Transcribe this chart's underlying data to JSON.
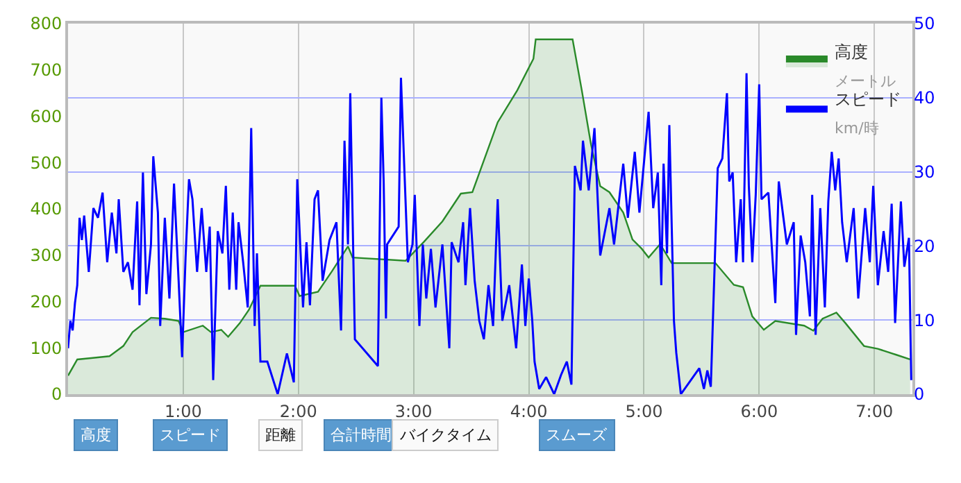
{
  "chart_data": {
    "type": "area",
    "xlim": [
      0,
      7.33
    ],
    "ylim": [
      0,
      800
    ],
    "y2lim": [
      0,
      50
    ],
    "xticks": [
      {
        "value": 1,
        "label": "1:00"
      },
      {
        "value": 2,
        "label": "2:00"
      },
      {
        "value": 3,
        "label": "3:00"
      },
      {
        "value": 4,
        "label": "4:00"
      },
      {
        "value": 5,
        "label": "5:00"
      },
      {
        "value": 6,
        "label": "6:00"
      },
      {
        "value": 7,
        "label": "7:00"
      }
    ],
    "yticks": [
      0,
      100,
      200,
      300,
      400,
      500,
      600,
      700,
      800
    ],
    "y2ticks": [
      0,
      10,
      20,
      30,
      40,
      50
    ],
    "grid": true,
    "legend": "top right",
    "series": [
      {
        "name": "高度",
        "type": "area",
        "color": "#2a8a2a",
        "x": [
          0,
          0.08,
          0.2,
          0.36,
          0.48,
          0.56,
          0.72,
          0.84,
          0.96,
          1.0,
          1.17,
          1.24,
          1.33,
          1.39,
          1.49,
          1.57,
          1.67,
          1.97,
          2.01,
          2.17,
          2.29,
          2.43,
          2.47,
          2.93,
          3.09,
          3.25,
          3.41,
          3.51,
          3.73,
          3.9,
          4.04,
          4.06,
          4.38,
          4.46,
          4.54,
          4.62,
          4.7,
          4.82,
          4.9,
          4.98,
          5.04,
          5.14,
          5.24,
          5.62,
          5.78,
          5.86,
          5.94,
          6.04,
          6.14,
          6.39,
          6.47,
          6.55,
          6.67,
          6.75,
          6.91,
          7.03,
          7.19,
          7.31
        ],
        "values": [
          40,
          75,
          78,
          82,
          104,
          134,
          165,
          163,
          158,
          134,
          148,
          134,
          139,
          124,
          153,
          182,
          234,
          234,
          212,
          221,
          265,
          319,
          295,
          288,
          329,
          373,
          433,
          436,
          587,
          656,
          724,
          766,
          766,
          656,
          539,
          449,
          436,
          392,
          334,
          314,
          295,
          324,
          283,
          283,
          236,
          231,
          168,
          139,
          158,
          148,
          137,
          163,
          176,
          153,
          104,
          98,
          85,
          75
        ]
      },
      {
        "name": "スピード",
        "type": "line",
        "axis": "y2",
        "color": "#0000ff",
        "x": [
          0,
          0.02,
          0.04,
          0.06,
          0.08,
          0.1,
          0.12,
          0.14,
          0.18,
          0.22,
          0.26,
          0.3,
          0.34,
          0.38,
          0.42,
          0.44,
          0.48,
          0.52,
          0.56,
          0.6,
          0.62,
          0.65,
          0.68,
          0.72,
          0.74,
          0.78,
          0.8,
          0.84,
          0.88,
          0.92,
          0.96,
          0.99,
          1.02,
          1.05,
          1.08,
          1.12,
          1.16,
          1.2,
          1.23,
          1.26,
          1.3,
          1.34,
          1.37,
          1.4,
          1.43,
          1.46,
          1.48,
          1.52,
          1.56,
          1.59,
          1.62,
          1.64,
          1.67,
          1.73,
          1.82,
          1.9,
          1.96,
          1.99,
          2.04,
          2.07,
          2.1,
          2.14,
          2.17,
          2.21,
          2.27,
          2.33,
          2.37,
          2.4,
          2.43,
          2.45,
          2.49,
          2.69,
          2.72,
          2.74,
          2.76,
          2.77,
          2.87,
          2.89,
          2.92,
          2.95,
          2.99,
          3.01,
          3.05,
          3.08,
          3.11,
          3.15,
          3.19,
          3.25,
          3.31,
          3.33,
          3.39,
          3.43,
          3.45,
          3.49,
          3.53,
          3.57,
          3.61,
          3.65,
          3.69,
          3.73,
          3.77,
          3.83,
          3.89,
          3.94,
          3.97,
          4.0,
          4.03,
          4.05,
          4.09,
          4.15,
          4.22,
          4.28,
          4.33,
          4.37,
          4.4,
          4.45,
          4.47,
          4.52,
          4.57,
          4.62,
          4.7,
          4.74,
          4.82,
          4.86,
          4.92,
          4.96,
          5.04,
          5.08,
          5.12,
          5.15,
          5.17,
          5.2,
          5.22,
          5.26,
          5.28,
          5.32,
          5.48,
          5.52,
          5.55,
          5.58,
          5.64,
          5.68,
          5.72,
          5.74,
          5.77,
          5.8,
          5.84,
          5.86,
          5.89,
          5.91,
          5.94,
          5.97,
          6.0,
          6.02,
          6.08,
          6.14,
          6.17,
          6.24,
          6.3,
          6.32,
          6.36,
          6.4,
          6.44,
          6.46,
          6.49,
          6.53,
          6.57,
          6.6,
          6.63,
          6.66,
          6.69,
          6.72,
          6.76,
          6.82,
          6.86,
          6.92,
          6.96,
          6.99,
          7.03,
          7.08,
          7.12,
          7.15,
          7.18,
          7.23,
          7.26,
          7.3,
          7.32
        ],
        "values": [
          6.2,
          9.9,
          8.6,
          12.3,
          14.7,
          23.8,
          20.8,
          24.1,
          16.5,
          25.1,
          23.8,
          27.2,
          17.8,
          24.5,
          19.0,
          26.3,
          16.5,
          17.8,
          14.1,
          26.0,
          12.0,
          29.9,
          13.5,
          20.2,
          32.1,
          24.5,
          9.2,
          23.8,
          12.9,
          28.4,
          15.3,
          5.0,
          18.4,
          29.0,
          26.3,
          16.5,
          25.1,
          16.5,
          22.6,
          1.9,
          22.0,
          19.0,
          28.1,
          14.1,
          24.5,
          14.1,
          23.2,
          17.8,
          11.7,
          35.9,
          9.2,
          19.0,
          4.4,
          4.4,
          0,
          5.5,
          1.6,
          29.0,
          11.7,
          20.5,
          12.0,
          26.3,
          27.5,
          15.3,
          20.8,
          23.2,
          8.6,
          34.2,
          20.2,
          40.6,
          7.4,
          3.8,
          40.0,
          28.7,
          10.2,
          20.2,
          22.6,
          42.7,
          30.2,
          17.8,
          20.2,
          26.9,
          9.2,
          20.2,
          12.9,
          19.6,
          11.7,
          20.2,
          6.2,
          20.5,
          17.8,
          23.2,
          14.7,
          25.1,
          15.3,
          9.9,
          7.4,
          14.7,
          9.2,
          26.3,
          9.9,
          14.7,
          6.2,
          17.5,
          9.2,
          15.6,
          9.9,
          4.4,
          0.7,
          2.3,
          0,
          2.6,
          4.4,
          1.3,
          30.8,
          27.5,
          34.2,
          27.5,
          35.9,
          18.7,
          25.1,
          20.2,
          31.1,
          23.8,
          32.7,
          24.5,
          38.1,
          25.1,
          29.9,
          14.7,
          31.1,
          19.0,
          36.3,
          9.9,
          5.6,
          0,
          3.5,
          0.7,
          3.2,
          1.0,
          30.5,
          31.8,
          40.6,
          28.7,
          29.9,
          17.8,
          26.3,
          17.8,
          43.3,
          28.1,
          17.8,
          26.9,
          41.8,
          26.3,
          27.2,
          12.3,
          28.7,
          20.2,
          23.2,
          8.0,
          21.4,
          17.8,
          10.5,
          26.9,
          8.0,
          25.1,
          11.7,
          26.0,
          32.7,
          27.5,
          31.8,
          23.2,
          17.8,
          25.1,
          12.9,
          25.1,
          17.8,
          28.1,
          14.7,
          22.0,
          16.5,
          25.7,
          9.6,
          26.0,
          17.2,
          21.1,
          1.9
        ]
      }
    ],
    "annotations": [
      "メートル",
      "km/時",
      "高度",
      "スピード",
      "距離",
      "合計時間",
      "バイクタイム",
      "スムーズ"
    ]
  }
}
